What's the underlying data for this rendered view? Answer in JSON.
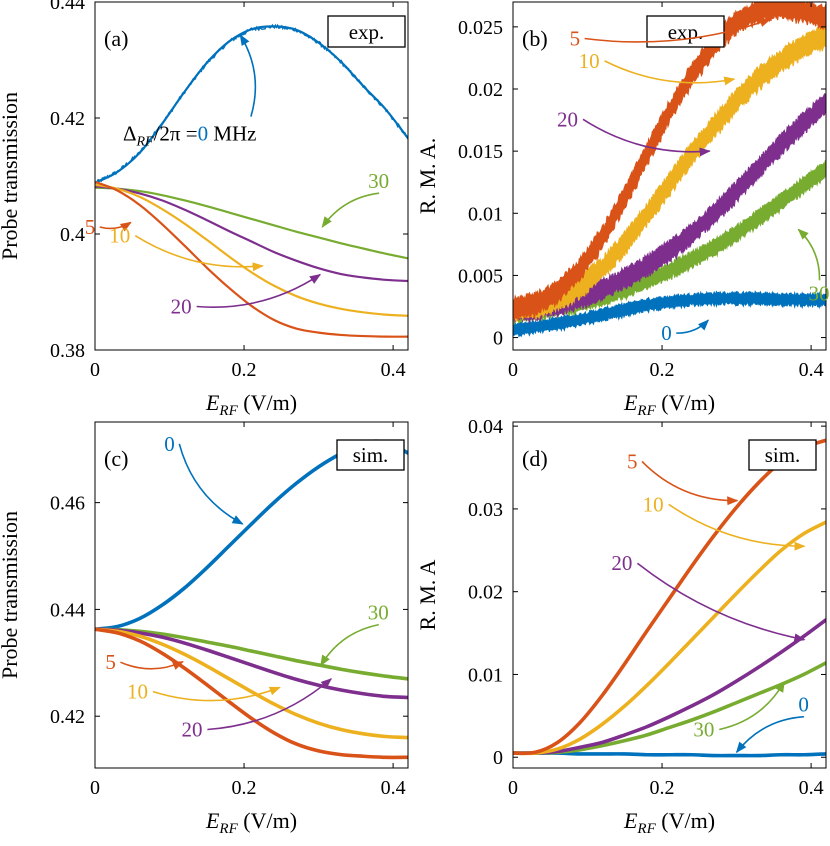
{
  "colors": {
    "0": "#0072BD",
    "5": "#D95319",
    "10": "#EDB120",
    "20": "#7E2F8E",
    "30": "#77AC30"
  },
  "chart_data": [
    {
      "panel": "(a)",
      "badge": "exp.",
      "type": "line",
      "noisy": false,
      "xlabel_main": "E",
      "xlabel_sub": "RF",
      "xlabel_unit": " (V/m)",
      "ylabel": "Probe transmission",
      "xlim": [
        0,
        0.42
      ],
      "ylim": [
        0.38,
        0.44
      ],
      "xticks": [
        0,
        0.2,
        0.4
      ],
      "xtick_labels": [
        "0",
        "0.2",
        "0.4"
      ],
      "yticks": [
        0.38,
        0.4,
        0.42,
        0.44
      ],
      "ytick_labels": [
        "0.38",
        "0.4",
        "0.42",
        "0.44"
      ],
      "x": [
        0,
        0.03,
        0.06,
        0.09,
        0.12,
        0.15,
        0.18,
        0.21,
        0.24,
        0.27,
        0.3,
        0.33,
        0.36,
        0.39,
        0.42
      ],
      "series": [
        {
          "name": "0",
          "values": [
            0.4088,
            0.4107,
            0.414,
            0.419,
            0.4245,
            0.4295,
            0.4332,
            0.4353,
            0.4358,
            0.4352,
            0.433,
            0.4297,
            0.4255,
            0.4215,
            0.4165
          ]
        },
        {
          "name": "30",
          "values": [
            0.408,
            0.4078,
            0.4074,
            0.4067,
            0.4058,
            0.4048,
            0.4037,
            0.4026,
            0.4015,
            0.4004,
            0.3994,
            0.3984,
            0.3975,
            0.3966,
            0.3958
          ]
        },
        {
          "name": "20",
          "values": [
            0.4082,
            0.4078,
            0.407,
            0.4058,
            0.4042,
            0.4024,
            0.4005,
            0.3987,
            0.3969,
            0.3954,
            0.3941,
            0.3931,
            0.3925,
            0.3921,
            0.3919
          ]
        },
        {
          "name": "10",
          "values": [
            0.4085,
            0.4078,
            0.4064,
            0.4043,
            0.4018,
            0.399,
            0.3961,
            0.3934,
            0.3911,
            0.3893,
            0.388,
            0.3871,
            0.3865,
            0.3861,
            0.3859
          ]
        },
        {
          "name": "5",
          "values": [
            0.409,
            0.4075,
            0.405,
            0.4017,
            0.398,
            0.3942,
            0.3907,
            0.3876,
            0.3852,
            0.3837,
            0.383,
            0.3826,
            0.3824,
            0.3823,
            0.3823
          ]
        }
      ],
      "annotations": [
        {
          "text": "Δ",
          "sub": "RF",
          "rest": "/2π =",
          "num": "0",
          "unit": " MHz",
          "color_key": "0",
          "tx": 0.0375,
          "ty": 0.4161,
          "head_x": 0.195,
          "head_y": 0.4343
        },
        {
          "text": "30",
          "color_key": "30",
          "tx": 0.3665,
          "ty": 0.4079,
          "head_x": 0.305,
          "head_y": 0.4012
        },
        {
          "text": "5",
          "color_key": "5",
          "tx": -0.0138,
          "ty": 0.4,
          "head_x": 0.048,
          "head_y": 0.402
        },
        {
          "text": "10",
          "color_key": "10",
          "tx": 0.0192,
          "ty": 0.3985,
          "head_x": 0.225,
          "head_y": 0.3945
        },
        {
          "text": "20",
          "color_key": "20",
          "tx": 0.1015,
          "ty": 0.3863,
          "head_x": 0.302,
          "head_y": 0.393
        }
      ]
    },
    {
      "panel": "(b)",
      "badge": "exp.",
      "type": "line",
      "noisy": true,
      "xlabel_main": "E",
      "xlabel_sub": "RF",
      "xlabel_unit": " (V/m)",
      "ylabel": "R. M. A.",
      "xlim": [
        0,
        0.42
      ],
      "ylim": [
        -0.001,
        0.027
      ],
      "xticks": [
        0,
        0.2,
        0.4
      ],
      "xtick_labels": [
        "0",
        "0.2",
        "0.4"
      ],
      "yticks": [
        0,
        0.005,
        0.01,
        0.015,
        0.02,
        0.025
      ],
      "ytick_labels": [
        "0",
        "0.005",
        "0.01",
        "0.015",
        "0.02",
        "0.025"
      ],
      "x": [
        0,
        0.03,
        0.06,
        0.09,
        0.12,
        0.15,
        0.18,
        0.21,
        0.24,
        0.27,
        0.3,
        0.33,
        0.36,
        0.39,
        0.42
      ],
      "series": [
        {
          "name": "0",
          "band": 0.0012,
          "values": [
            0.0006,
            0.0008,
            0.0011,
            0.0014,
            0.0018,
            0.0022,
            0.0026,
            0.0028,
            0.003,
            0.0031,
            0.0031,
            0.0031,
            0.003,
            0.003,
            0.003
          ]
        },
        {
          "name": "30",
          "band": 0.0016,
          "values": [
            0.0018,
            0.002,
            0.0023,
            0.0027,
            0.0032,
            0.0038,
            0.0045,
            0.0053,
            0.0062,
            0.0072,
            0.0083,
            0.0096,
            0.0109,
            0.0122,
            0.0135
          ]
        },
        {
          "name": "20",
          "band": 0.002,
          "values": [
            0.002,
            0.0022,
            0.0026,
            0.0031,
            0.0038,
            0.0047,
            0.0057,
            0.0069,
            0.0083,
            0.0099,
            0.0117,
            0.0136,
            0.0155,
            0.0172,
            0.0188
          ]
        },
        {
          "name": "10",
          "band": 0.0022,
          "values": [
            0.0021,
            0.0024,
            0.003,
            0.004,
            0.0055,
            0.0075,
            0.0098,
            0.0123,
            0.0147,
            0.0169,
            0.019,
            0.0208,
            0.0222,
            0.0234,
            0.0242
          ]
        },
        {
          "name": "5",
          "band": 0.0022,
          "values": [
            0.0022,
            0.0026,
            0.0036,
            0.0054,
            0.008,
            0.0112,
            0.0147,
            0.0181,
            0.0211,
            0.0235,
            0.0253,
            0.0262,
            0.0265,
            0.0262,
            0.0256
          ]
        }
      ],
      "annotations": [
        {
          "text": "5",
          "color_key": "5",
          "tx": 0.076,
          "ty": 0.0235,
          "head_x": 0.345,
          "head_y": 0.0256
        },
        {
          "text": "10",
          "color_key": "10",
          "tx": 0.088,
          "ty": 0.0217,
          "head_x": 0.297,
          "head_y": 0.0208
        },
        {
          "text": "20",
          "color_key": "20",
          "tx": 0.059,
          "ty": 0.017,
          "head_x": 0.264,
          "head_y": 0.015
        },
        {
          "text": "30",
          "color_key": "30",
          "tx": 0.3965,
          "ty": 0.003,
          "head_x": 0.383,
          "head_y": 0.0087
        },
        {
          "text": "0",
          "color_key": "0",
          "tx": 0.199,
          "ty": -0.0002,
          "head_x": 0.262,
          "head_y": 0.0014
        }
      ]
    },
    {
      "panel": "(c)",
      "badge": "sim.",
      "type": "line",
      "noisy": false,
      "xlabel_main": "E",
      "xlabel_sub": "RF",
      "xlabel_unit": " (V/m)",
      "ylabel": "Probe transmission",
      "xlim": [
        0,
        0.42
      ],
      "ylim": [
        0.4103,
        0.4751
      ],
      "xticks": [
        0,
        0.2,
        0.4
      ],
      "xtick_labels": [
        "0",
        "0.2",
        "0.4"
      ],
      "yticks": [
        0.42,
        0.44,
        0.46
      ],
      "ytick_labels": [
        "0.42",
        "0.44",
        "0.46"
      ],
      "x": [
        0,
        0.03,
        0.06,
        0.09,
        0.12,
        0.15,
        0.18,
        0.21,
        0.24,
        0.27,
        0.3,
        0.33,
        0.36,
        0.39,
        0.42
      ],
      "series": [
        {
          "name": "0",
          "values": [
            0.4363,
            0.4368,
            0.4383,
            0.4408,
            0.444,
            0.4478,
            0.4519,
            0.456,
            0.46,
            0.4636,
            0.4667,
            0.4692,
            0.4712,
            0.4713,
            0.4693
          ]
        },
        {
          "name": "30",
          "values": [
            0.4363,
            0.4362,
            0.4359,
            0.4354,
            0.4347,
            0.4339,
            0.4331,
            0.4322,
            0.4313,
            0.4304,
            0.4296,
            0.4288,
            0.4281,
            0.4275,
            0.427
          ]
        },
        {
          "name": "20",
          "values": [
            0.4363,
            0.4361,
            0.4356,
            0.4348,
            0.4337,
            0.4324,
            0.431,
            0.4296,
            0.4282,
            0.4269,
            0.4258,
            0.4249,
            0.4242,
            0.4237,
            0.4235
          ]
        },
        {
          "name": "10",
          "values": [
            0.4363,
            0.4359,
            0.435,
            0.4335,
            0.4316,
            0.4294,
            0.427,
            0.4246,
            0.4223,
            0.4203,
            0.4187,
            0.4175,
            0.4167,
            0.4162,
            0.416
          ]
        },
        {
          "name": "5",
          "values": [
            0.4363,
            0.4356,
            0.4341,
            0.4318,
            0.429,
            0.4259,
            0.4227,
            0.4196,
            0.4169,
            0.4148,
            0.4135,
            0.4128,
            0.4125,
            0.4123,
            0.4123
          ]
        }
      ],
      "annotations": [
        {
          "text": "0",
          "color_key": "0",
          "tx": 0.093,
          "ty": 0.4697,
          "head_x": 0.198,
          "head_y": 0.456
        },
        {
          "text": "30",
          "color_key": "30",
          "tx": 0.366,
          "ty": 0.4381,
          "head_x": 0.303,
          "head_y": 0.4295
        },
        {
          "text": "5",
          "color_key": "5",
          "tx": 0.014,
          "ty": 0.4288,
          "head_x": 0.118,
          "head_y": 0.4302
        },
        {
          "text": "10",
          "color_key": "10",
          "tx": 0.043,
          "ty": 0.4233,
          "head_x": 0.248,
          "head_y": 0.4254
        },
        {
          "text": "20",
          "color_key": "20",
          "tx": 0.116,
          "ty": 0.4162,
          "head_x": 0.317,
          "head_y": 0.427
        }
      ]
    },
    {
      "panel": "(d)",
      "badge": "sim.",
      "type": "line",
      "noisy": false,
      "xlabel_main": "E",
      "xlabel_sub": "RF",
      "xlabel_unit": " (V/m)",
      "ylabel": "R. M. A",
      "xlim": [
        0,
        0.42
      ],
      "ylim": [
        -0.0013,
        0.0405
      ],
      "xticks": [
        0,
        0.2,
        0.4
      ],
      "xtick_labels": [
        "0",
        "0.2",
        "0.4"
      ],
      "yticks": [
        0,
        0.01,
        0.02,
        0.03,
        0.04
      ],
      "ytick_labels": [
        "0",
        "0.01",
        "0.02",
        "0.03",
        "0.04"
      ],
      "x": [
        0,
        0.03,
        0.06,
        0.09,
        0.12,
        0.15,
        0.18,
        0.21,
        0.24,
        0.27,
        0.3,
        0.33,
        0.36,
        0.39,
        0.42
      ],
      "series": [
        {
          "name": "0",
          "values": [
            0.0005,
            0.0005,
            0.0005,
            0.0004,
            0.0004,
            0.0004,
            0.0003,
            0.0003,
            0.0003,
            0.0002,
            0.0002,
            0.0002,
            0.0003,
            0.0003,
            0.0004
          ]
        },
        {
          "name": "30",
          "values": [
            0.0005,
            0.0005,
            0.0006,
            0.0009,
            0.0014,
            0.002,
            0.0027,
            0.0036,
            0.0045,
            0.0055,
            0.0066,
            0.0077,
            0.0088,
            0.01,
            0.0114
          ]
        },
        {
          "name": "20",
          "values": [
            0.0005,
            0.0005,
            0.0007,
            0.0012,
            0.0018,
            0.0027,
            0.0037,
            0.0049,
            0.0062,
            0.0076,
            0.0092,
            0.0109,
            0.0127,
            0.0146,
            0.0166
          ]
        },
        {
          "name": "10",
          "values": [
            0.0005,
            0.0005,
            0.001,
            0.0022,
            0.004,
            0.0062,
            0.0087,
            0.0114,
            0.0142,
            0.017,
            0.0198,
            0.0225,
            0.025,
            0.027,
            0.0284
          ]
        },
        {
          "name": "5",
          "values": [
            0.0005,
            0.0006,
            0.0018,
            0.0042,
            0.0075,
            0.0113,
            0.0153,
            0.0192,
            0.0231,
            0.0268,
            0.0302,
            0.0332,
            0.0357,
            0.0374,
            0.0383
          ]
        }
      ],
      "annotations": [
        {
          "text": "5",
          "color_key": "5",
          "tx": 0.153,
          "ty": 0.0349,
          "head_x": 0.301,
          "head_y": 0.031
        },
        {
          "text": "10",
          "color_key": "10",
          "tx": 0.174,
          "ty": 0.0297,
          "head_x": 0.391,
          "head_y": 0.0255
        },
        {
          "text": "20",
          "color_key": "20",
          "tx": 0.132,
          "ty": 0.0226,
          "head_x": 0.391,
          "head_y": 0.0142
        },
        {
          "text": "30",
          "color_key": "30",
          "tx": 0.242,
          "ty": 0.0025,
          "head_x": 0.364,
          "head_y": 0.0091
        },
        {
          "text": "0",
          "color_key": "0",
          "tx": 0.383,
          "ty": 0.0055,
          "head_x": 0.3,
          "head_y": 0.0006
        }
      ]
    }
  ]
}
